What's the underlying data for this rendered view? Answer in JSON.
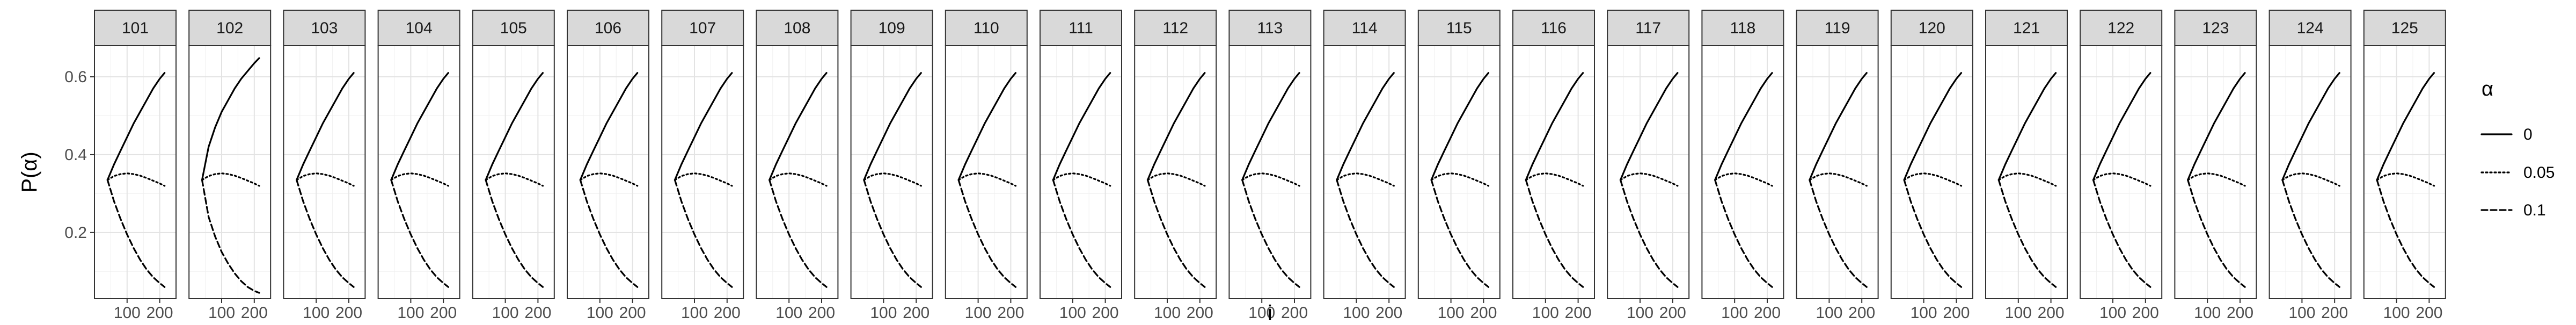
{
  "chart_data": {
    "type": "line",
    "facet_panels": [
      "101",
      "102",
      "103",
      "104",
      "105",
      "106",
      "107",
      "108",
      "109",
      "110",
      "111",
      "112",
      "113",
      "114",
      "115",
      "116",
      "117",
      "118",
      "119",
      "120",
      "121",
      "122",
      "123",
      "124",
      "125"
    ],
    "xlabel": "i",
    "ylabel": "P(α)",
    "x_ticks": [
      100,
      200
    ],
    "x_tick_labels": [
      "100",
      "200"
    ],
    "y_ticks": [
      0.2,
      0.4,
      0.6
    ],
    "y_tick_labels": [
      "0.2",
      "0.4",
      "0.6"
    ],
    "xlim": [
      0,
      250
    ],
    "ylim": [
      0.03,
      0.68
    ],
    "grid": true,
    "legend": {
      "title": "α",
      "placement": "right",
      "entries": [
        {
          "label": "0",
          "linetype": "solid"
        },
        {
          "label": "0.05",
          "linetype": "dotted"
        },
        {
          "label": "0.1",
          "linetype": "dashed"
        }
      ]
    },
    "x": [
      40,
      60,
      80,
      100,
      120,
      140,
      160,
      180,
      200,
      215
    ],
    "series": [
      {
        "name": "0",
        "linetype": "solid",
        "values": [
          0.335,
          0.375,
          0.41,
          0.445,
          0.48,
          0.51,
          0.54,
          0.57,
          0.595,
          0.61
        ]
      },
      {
        "name": "0.05",
        "linetype": "dotted",
        "values": [
          0.335,
          0.345,
          0.35,
          0.352,
          0.35,
          0.346,
          0.34,
          0.333,
          0.326,
          0.32
        ]
      },
      {
        "name": "0.1",
        "linetype": "dashed",
        "values": [
          0.335,
          0.28,
          0.235,
          0.195,
          0.16,
          0.13,
          0.105,
          0.085,
          0.07,
          0.06
        ]
      }
    ],
    "panel_102_series": [
      {
        "name": "0",
        "values": [
          0.335,
          0.42,
          0.47,
          0.51,
          0.54,
          0.57,
          0.595,
          0.615,
          0.635,
          0.648
        ]
      },
      {
        "name": "0.05",
        "values": [
          0.335,
          0.345,
          0.35,
          0.352,
          0.35,
          0.346,
          0.34,
          0.333,
          0.326,
          0.32
        ]
      },
      {
        "name": "0.1",
        "values": [
          0.335,
          0.24,
          0.19,
          0.15,
          0.12,
          0.095,
          0.075,
          0.06,
          0.05,
          0.045
        ]
      }
    ]
  }
}
